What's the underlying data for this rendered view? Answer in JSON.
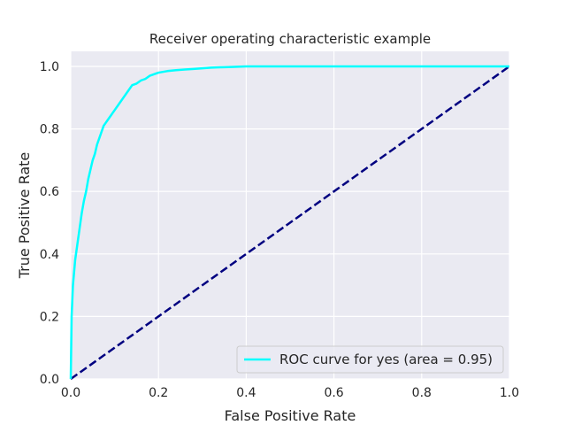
{
  "chart_data": {
    "type": "line",
    "title": "Receiver operating characteristic example",
    "xlabel": "False Positive Rate",
    "ylabel": "True Positive Rate",
    "xlim": [
      0.0,
      1.0
    ],
    "ylim": [
      0.0,
      1.0
    ],
    "xticks": [
      "0.0",
      "0.2",
      "0.4",
      "0.6",
      "0.8",
      "1.0"
    ],
    "yticks": [
      "0.0",
      "0.2",
      "0.4",
      "0.6",
      "0.8",
      "1.0"
    ],
    "grid": true,
    "background": "#eaeaf2",
    "legend_position": "lower-right",
    "series": [
      {
        "name": "ROC curve for yes (area = 0.95)",
        "color": "#00ffff",
        "style": "solid",
        "x": [
          0.0,
          0.002,
          0.005,
          0.01,
          0.015,
          0.02,
          0.025,
          0.03,
          0.035,
          0.04,
          0.045,
          0.05,
          0.055,
          0.06,
          0.065,
          0.07,
          0.075,
          0.08,
          0.085,
          0.09,
          0.095,
          0.1,
          0.11,
          0.12,
          0.13,
          0.14,
          0.15,
          0.16,
          0.17,
          0.18,
          0.19,
          0.2,
          0.22,
          0.24,
          0.26,
          0.28,
          0.3,
          0.32,
          0.34,
          0.36,
          0.38,
          0.4,
          0.5,
          0.6,
          0.7,
          0.8,
          0.9,
          1.0
        ],
        "y": [
          0.0,
          0.2,
          0.3,
          0.38,
          0.43,
          0.48,
          0.53,
          0.57,
          0.6,
          0.64,
          0.67,
          0.7,
          0.72,
          0.75,
          0.77,
          0.79,
          0.81,
          0.82,
          0.83,
          0.84,
          0.85,
          0.86,
          0.88,
          0.9,
          0.92,
          0.94,
          0.945,
          0.955,
          0.96,
          0.97,
          0.975,
          0.98,
          0.985,
          0.988,
          0.99,
          0.992,
          0.994,
          0.996,
          0.997,
          0.998,
          0.999,
          1.0,
          1.0,
          1.0,
          1.0,
          1.0,
          1.0,
          1.0
        ]
      },
      {
        "name": "",
        "color": "#000080",
        "style": "dashed",
        "x": [
          0.0,
          1.0
        ],
        "y": [
          0.0,
          1.0
        ]
      }
    ]
  }
}
